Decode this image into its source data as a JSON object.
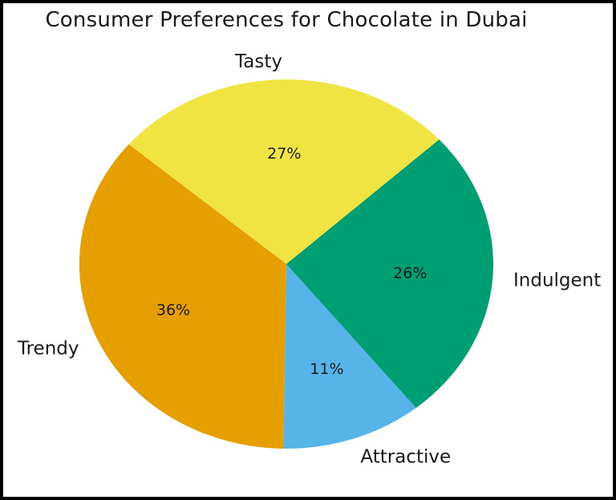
{
  "window": {
    "background_color": "#ffffff",
    "frame_color": "#000000"
  },
  "chart_data": {
    "type": "pie",
    "title": "Consumer Preferences for Chocolate in Dubai",
    "slices": [
      {
        "label": "Tasty",
        "value": 27,
        "pct_label": "27%",
        "color": "#F0E442"
      },
      {
        "label": "Trendy",
        "value": 36,
        "pct_label": "36%",
        "color": "#E69F00"
      },
      {
        "label": "Attractive",
        "value": 11,
        "pct_label": "11%",
        "color": "#56B4E9"
      },
      {
        "label": "Indulgent",
        "value": 26,
        "pct_label": "26%",
        "color": "#009E73"
      }
    ],
    "start_angle_deg": 42.4,
    "direction": "counterclockwise",
    "label_distance": 1.1,
    "pct_distance": 0.6,
    "legend": "none",
    "grid": false,
    "text_color": "#1a1a1a"
  }
}
